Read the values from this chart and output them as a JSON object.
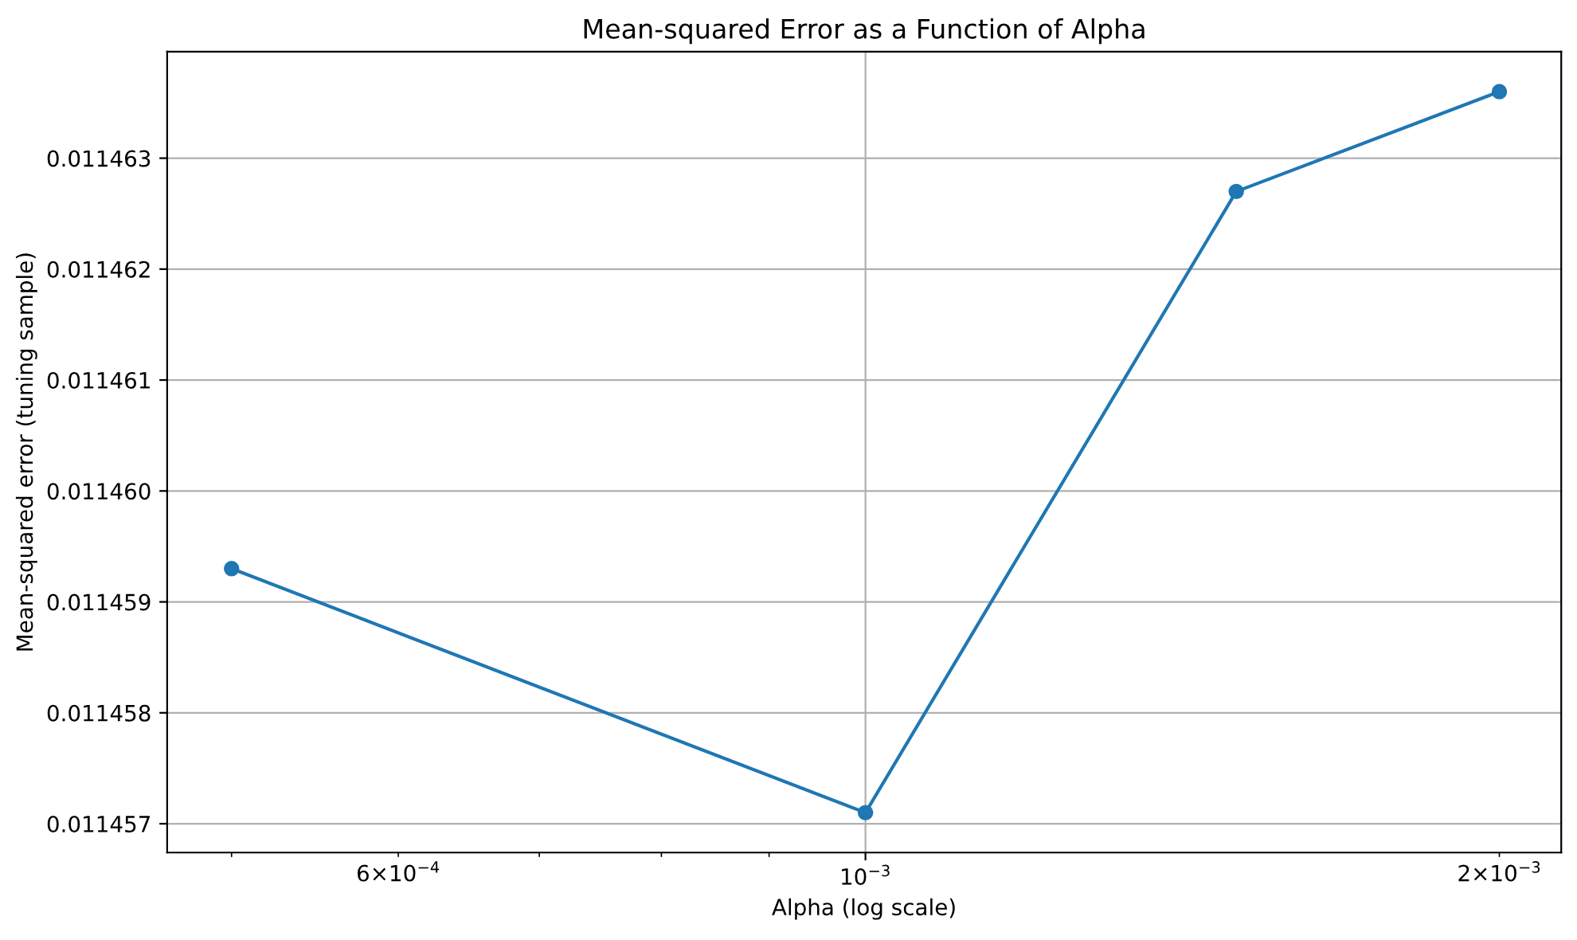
{
  "chart_data": {
    "type": "line",
    "title": "Mean-squared Error as a Function of Alpha",
    "xlabel": "Alpha (log scale)",
    "ylabel": "Mean-squared error (tuning sample)",
    "x": [
      0.0005,
      0.001,
      0.0015,
      0.002
    ],
    "series": [
      {
        "color": "#1f77b4",
        "values": [
          0.0114593,
          0.0114571,
          0.0114627,
          0.0114636
        ]
      }
    ],
    "log": "x",
    "xlim": [
      0.000466,
      0.00214
    ],
    "xticks": [
      {
        "value": 0.0005,
        "label": null
      },
      {
        "value": 0.0006,
        "label": "6×10$^{−4}$"
      },
      {
        "value": 0.0007,
        "label": null
      },
      {
        "value": 0.0008,
        "label": null
      },
      {
        "value": 0.0009,
        "label": null
      },
      {
        "value": 0.001,
        "label": "10$^{−3}$"
      },
      {
        "value": 0.002,
        "label": "2×10$^{−3}$"
      }
    ],
    "ylim": [
      0.01145674,
      0.01146396
    ],
    "yticks": [
      {
        "value": 0.011457,
        "label": "0.011457"
      },
      {
        "value": 0.011458,
        "label": "0.011458"
      },
      {
        "value": 0.011459,
        "label": "0.011459"
      },
      {
        "value": 0.01146,
        "label": "0.011460"
      },
      {
        "value": 0.011461,
        "label": "0.011461"
      },
      {
        "value": 0.011462,
        "label": "0.011462"
      },
      {
        "value": 0.011463,
        "label": "0.011463"
      }
    ],
    "grid": true,
    "marker": "circle",
    "line_style": "solid",
    "legend": false
  }
}
